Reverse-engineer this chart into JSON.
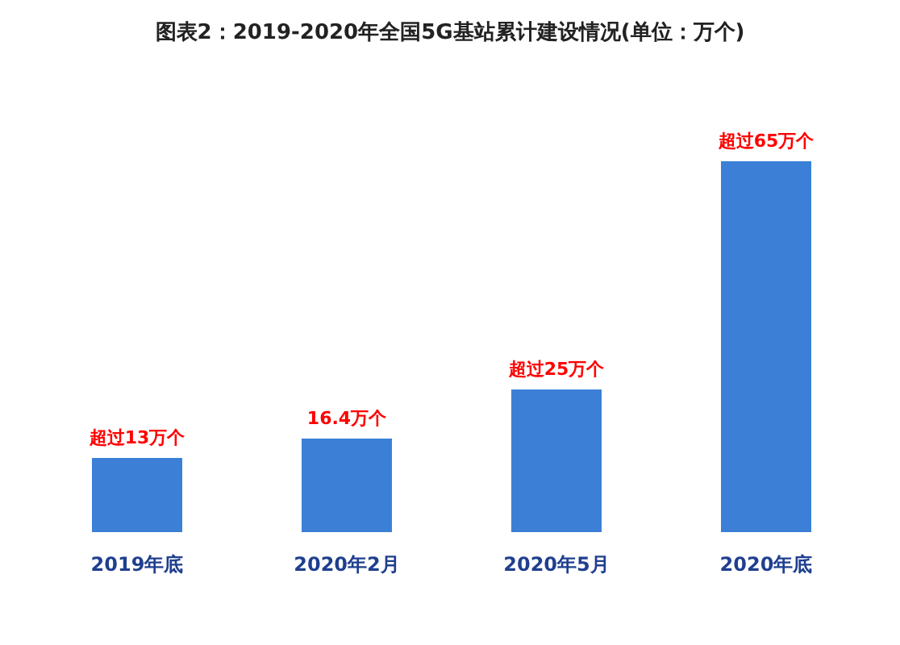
{
  "chart_data": {
    "type": "bar",
    "title": "图表2：2019-2020年全国5G基站累计建设情况(单位：万个)",
    "categories": [
      "2019年底",
      "2020年2月",
      "2020年5月",
      "2020年底"
    ],
    "values": [
      13,
      16.4,
      25,
      65
    ],
    "color": "#3b80d6",
    "value_labels": [
      "超过13万个",
      "16.4万个",
      "超过25万个",
      "超过65万个"
    ],
    "tick_labels": "x"
  }
}
